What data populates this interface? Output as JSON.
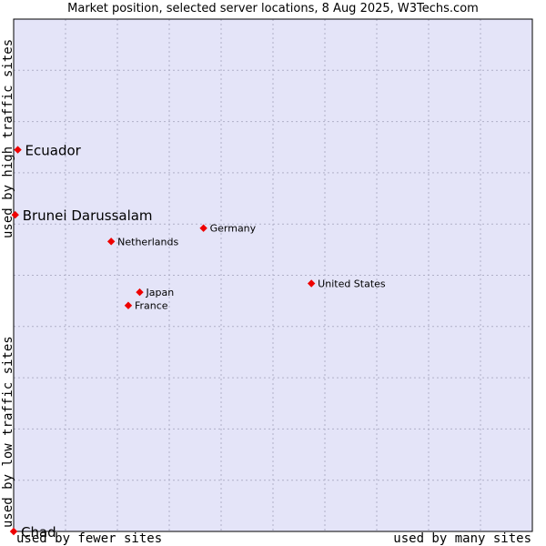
{
  "chart_data": {
    "type": "scatter",
    "title": "Market position, selected server locations, 8 Aug 2025, W3Techs.com",
    "x_axis": {
      "low_label": "used by fewer sites",
      "high_label": "used by many sites",
      "range": [
        0,
        100
      ]
    },
    "y_axis": {
      "low_label": "used by low traffic sites",
      "high_label": "used by high traffic sites",
      "range": [
        0,
        100
      ]
    },
    "grid": true,
    "colors": {
      "plot_bg": "#e4e4f8",
      "grid": "#b0b0c8",
      "marker": "#ee0000"
    },
    "points": [
      {
        "name": "Ecuador",
        "x": 0.8,
        "y": 74.5,
        "emphasis": true
      },
      {
        "name": "Brunei Darussalam",
        "x": 0.3,
        "y": 61.8,
        "emphasis": true
      },
      {
        "name": "Germany",
        "x": 36.6,
        "y": 59.2,
        "emphasis": false
      },
      {
        "name": "Netherlands",
        "x": 18.8,
        "y": 56.6,
        "emphasis": false
      },
      {
        "name": "United States",
        "x": 57.4,
        "y": 48.4,
        "emphasis": false
      },
      {
        "name": "Japan",
        "x": 24.3,
        "y": 46.7,
        "emphasis": false
      },
      {
        "name": "France",
        "x": 22.1,
        "y": 44.1,
        "emphasis": false
      },
      {
        "name": "Chad",
        "x": 0.0,
        "y": 0.0,
        "emphasis": true
      }
    ]
  }
}
